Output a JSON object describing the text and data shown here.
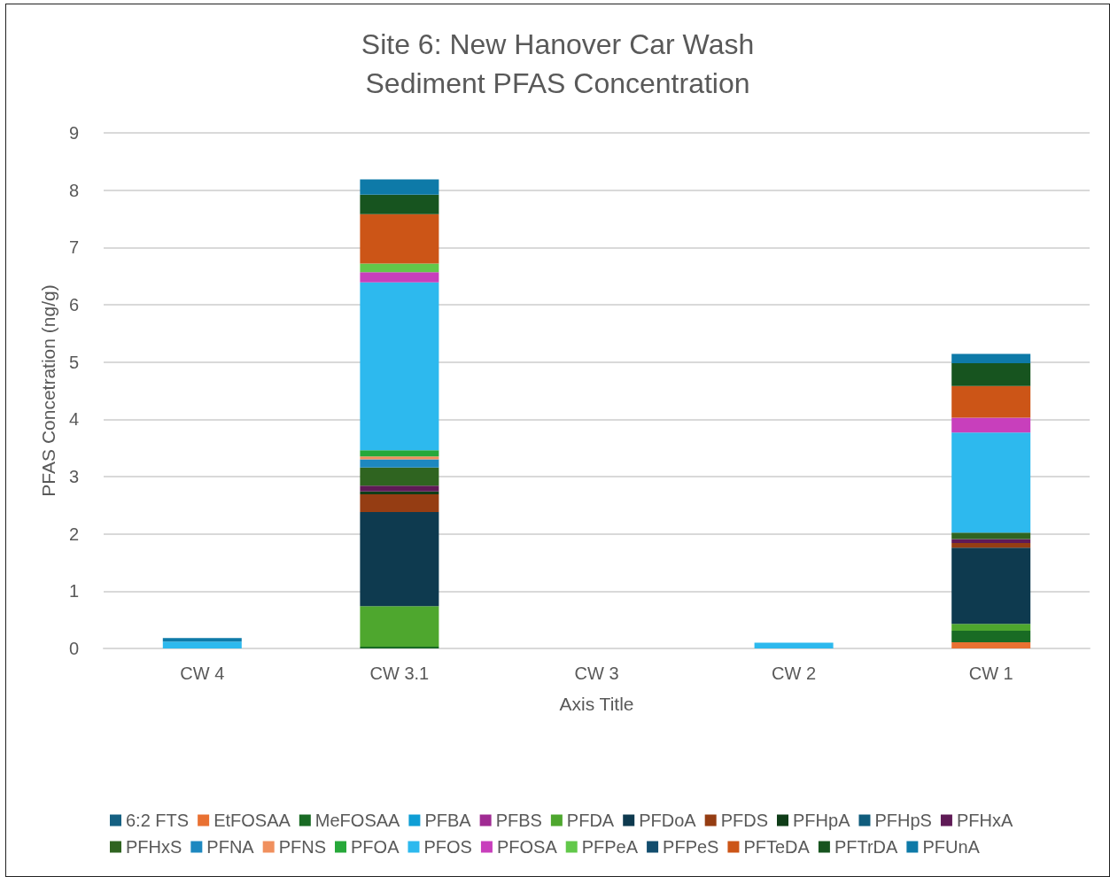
{
  "chart_data": {
    "type": "bar",
    "title": "Site 6: New Hanover Car Wash",
    "subtitle": "Sediment PFAS Concentration",
    "xlabel": "Axis Title",
    "ylabel": "PFAS Concetration (ng/g)",
    "categories": [
      "CW 4",
      "CW 3.1",
      "CW 3",
      "CW 2",
      "CW 1"
    ],
    "stacked": true,
    "ylim": [
      0,
      9
    ],
    "yticks": [
      0,
      1,
      2,
      3,
      4,
      5,
      6,
      7,
      8,
      9
    ],
    "grid": "y",
    "legend": "bottom",
    "series": [
      {
        "name": "6:2 FTS",
        "color": "#156082",
        "values": [
          null,
          null,
          null,
          null,
          null
        ]
      },
      {
        "name": "EtFOSAA",
        "color": "#e97132",
        "values": [
          null,
          null,
          null,
          null,
          0.11
        ]
      },
      {
        "name": "MeFOSAA",
        "color": "#196b24",
        "values": [
          null,
          0.03,
          null,
          null,
          0.2
        ]
      },
      {
        "name": "PFBA",
        "color": "#0f9ed5",
        "values": [
          null,
          null,
          null,
          null,
          null
        ]
      },
      {
        "name": "PFBS",
        "color": "#a02b93",
        "values": [
          null,
          null,
          null,
          null,
          null
        ]
      },
      {
        "name": "PFDA",
        "color": "#4ea72e",
        "values": [
          null,
          0.71,
          null,
          null,
          0.12
        ]
      },
      {
        "name": "PFDoA",
        "color": "#0e3a4f",
        "values": [
          null,
          1.64,
          null,
          null,
          1.33
        ]
      },
      {
        "name": "PFDS",
        "color": "#953d13",
        "values": [
          null,
          0.31,
          null,
          null,
          0.08
        ]
      },
      {
        "name": "PFHpA",
        "color": "#0f3d18",
        "values": [
          null,
          0.05,
          null,
          null,
          null
        ]
      },
      {
        "name": "PFHpS",
        "color": "#105d7d",
        "values": [
          null,
          null,
          null,
          null,
          null
        ]
      },
      {
        "name": "PFHxA",
        "color": "#5f1a56",
        "values": [
          null,
          0.1,
          null,
          null,
          0.07
        ]
      },
      {
        "name": "PFHxS",
        "color": "#2f6420",
        "values": [
          null,
          0.32,
          null,
          null,
          0.11
        ]
      },
      {
        "name": "PFNA",
        "color": "#1d88c0",
        "values": [
          null,
          0.14,
          null,
          null,
          null
        ]
      },
      {
        "name": "PFNS",
        "color": "#f0905e",
        "values": [
          null,
          0.05,
          null,
          null,
          null
        ]
      },
      {
        "name": "PFOA",
        "color": "#27a83a",
        "values": [
          null,
          0.11,
          null,
          null,
          null
        ]
      },
      {
        "name": "PFOS",
        "color": "#2db9ee",
        "values": [
          0.12,
          2.93,
          null,
          0.1,
          1.75
        ]
      },
      {
        "name": "PFOSA",
        "color": "#c83fbc",
        "values": [
          null,
          0.18,
          null,
          null,
          0.26
        ]
      },
      {
        "name": "PFPeA",
        "color": "#62c84a",
        "values": [
          null,
          0.15,
          null,
          null,
          null
        ]
      },
      {
        "name": "PFPeS",
        "color": "#124d6e",
        "values": [
          null,
          null,
          null,
          null,
          null
        ]
      },
      {
        "name": "PFTeDA",
        "color": "#cc5517",
        "values": [
          null,
          0.86,
          null,
          null,
          0.55
        ]
      },
      {
        "name": "PFTrDA",
        "color": "#17541f",
        "values": [
          null,
          0.34,
          null,
          null,
          0.4
        ]
      },
      {
        "name": "PFUnA",
        "color": "#0e7aa8",
        "values": [
          0.06,
          0.27,
          null,
          null,
          0.16
        ]
      }
    ]
  }
}
